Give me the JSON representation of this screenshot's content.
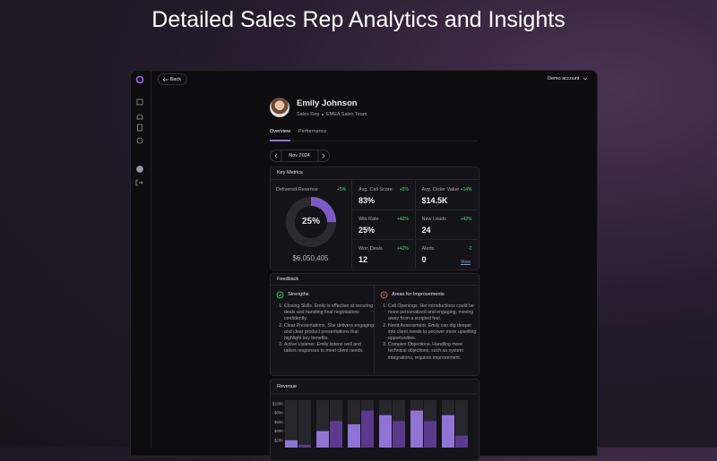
{
  "header": {
    "title": "Detailed Sales Rep Analytics and Insights"
  },
  "topbar": {
    "back": "Back",
    "account": "Demo account"
  },
  "profile": {
    "name": "Emily Johnson",
    "role": "Sales Rep",
    "team": "EMEA Sales Team"
  },
  "tabs": [
    "Overview",
    "Performance"
  ],
  "date": "Nov 2024",
  "key_metrics": {
    "title": "Key Metrics",
    "delivered_revenue": {
      "label": "Delivered Revenue",
      "change": "+5%",
      "percent": 25,
      "percent_label": "25%",
      "amount": "$6,050,405"
    },
    "metrics": [
      {
        "label": "Avg. Call Score",
        "change": "+5%",
        "value": "83%"
      },
      {
        "label": "Avg. Order Value",
        "change": "+14%",
        "value": "$14.5K"
      },
      {
        "label": "Win Rate",
        "change": "+42%",
        "value": "25%"
      },
      {
        "label": "New Leads",
        "change": "+42%",
        "value": "24"
      },
      {
        "label": "Won Deals",
        "change": "+42%",
        "value": "12"
      },
      {
        "label": "Alerts",
        "change": "-2",
        "value": "0"
      }
    ],
    "view": "View"
  },
  "feedback": {
    "title": "Feedback",
    "strengths": {
      "title": "Strengths",
      "items": [
        "Closing Skills. Emily is effective at securing deals and handling final negotiations confidently.",
        "Clear Presentations. She delivers engaging and clear product presentations that highlight key benefits.",
        "Active Listener. Emily listens well and tailors responses to meet client needs."
      ]
    },
    "improvements": {
      "title": "Areas for Improvements",
      "items": [
        "Call Openings. Her introductions could be more personalized and engaging, moving away from a scripted feel.",
        "Need Assessment. Emily can dig deeper into client needs to uncover more upselling opportunities.",
        "Complex Objections. Handling more technical objections, such as system integrations, requires improvement."
      ]
    }
  },
  "revenue": {
    "type": "bar",
    "title": "Revenue",
    "ylim": [
      0,
      100000
    ],
    "yticks": [
      {
        "value": 100000,
        "label": "$100K"
      },
      {
        "value": 80000,
        "label": "$80K"
      },
      {
        "value": 60000,
        "label": "$60K"
      },
      {
        "value": 40000,
        "label": "$40K"
      },
      {
        "value": 20000,
        "label": "$20K"
      }
    ],
    "series": [
      {
        "color": "#8f74d6",
        "values": [
          20000,
          40000,
          55000,
          75000,
          85000,
          75000
        ]
      },
      {
        "color": "#5b3a8e",
        "values": [
          10000,
          62000,
          85000,
          62000,
          62000,
          30000
        ]
      }
    ]
  }
}
